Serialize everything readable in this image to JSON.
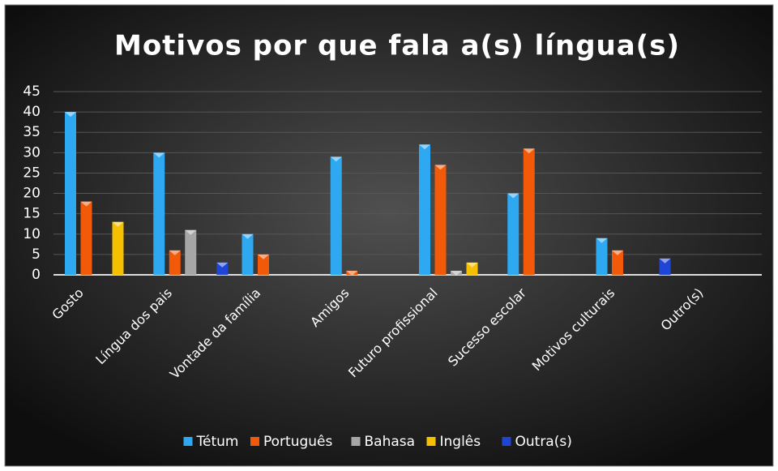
{
  "chart_data": {
    "type": "bar",
    "title": "Motivos por que fala a(s) língua(s)",
    "categories": [
      "Gosto",
      "Língua dos pais",
      "Vontade da família",
      "Amigos",
      "Futuro profissional",
      "Sucesso escolar",
      "Motivos culturais",
      "Outro(s)"
    ],
    "series": [
      {
        "name": "Tétum",
        "color": "#2ea8f0",
        "values": [
          40,
          30,
          10,
          29,
          32,
          20,
          9,
          0
        ]
      },
      {
        "name": "Português",
        "color": "#f25a0a",
        "values": [
          18,
          6,
          5,
          1,
          27,
          31,
          6,
          0
        ]
      },
      {
        "name": "Bahasa",
        "color": "#a6a6a6",
        "values": [
          0,
          11,
          0,
          0,
          1,
          0,
          0,
          0
        ]
      },
      {
        "name": "Inglês",
        "color": "#f5c000",
        "values": [
          13,
          0,
          0,
          0,
          3,
          0,
          0,
          0
        ]
      },
      {
        "name": "Outra(s)",
        "color": "#1f45d6",
        "values": [
          0,
          3,
          0,
          0,
          0,
          0,
          4,
          0
        ]
      }
    ],
    "ylim": [
      0,
      45
    ],
    "yticks": [
      0,
      5,
      10,
      15,
      20,
      25,
      30,
      35,
      40,
      45
    ],
    "grid": true,
    "legend": "bottom"
  }
}
